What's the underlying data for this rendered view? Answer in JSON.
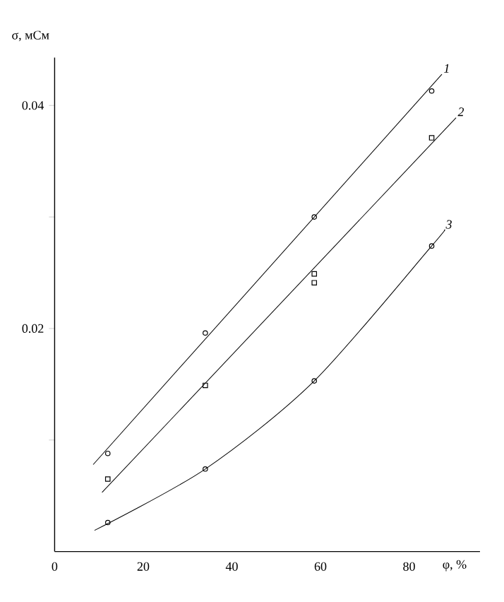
{
  "chart_data": {
    "type": "scatter",
    "xlabel": "φ, %",
    "ylabel": "σ, мСм",
    "xlim": [
      0,
      96
    ],
    "ylim": [
      0,
      0.0443
    ],
    "xticks": [
      0,
      20,
      40,
      60,
      80
    ],
    "yticks": [
      {
        "value": 0.01,
        "label": null
      },
      0.02,
      {
        "value": 0.03,
        "label": null
      },
      0.04
    ],
    "series": [
      {
        "marker": "circle",
        "color": "#000000",
        "x": [
          12.0,
          34.0,
          58.6,
          85.1
        ],
        "values": [
          0.0088,
          0.0196,
          0.03,
          0.0413
        ]
      },
      {
        "marker": "square",
        "color": "#000000",
        "x": [
          12.0,
          34.0,
          58.6,
          58.6,
          85.1
        ],
        "values": [
          0.0065,
          0.0149,
          0.0249,
          0.0241,
          0.0371
        ]
      },
      {
        "marker": "circle",
        "color": "#000000",
        "x": [
          12.0,
          34.0,
          58.6,
          85.1
        ],
        "values": [
          0.0026,
          0.0074,
          0.0153,
          0.0274
        ]
      },
      {
        "type": "line",
        "name": "1",
        "color": "#000000",
        "line_style": "solid",
        "x": [
          8.7,
          87.4
        ],
        "values": [
          0.0078,
          0.0428
        ]
      },
      {
        "type": "line",
        "name": "2",
        "color": "#000000",
        "line_style": "solid",
        "x": [
          10.7,
          90.6
        ],
        "values": [
          0.0053,
          0.0389
        ]
      },
      {
        "type": "line",
        "name": "3",
        "color": "#000000",
        "line_style": "solid",
        "x": [
          9.0,
          34.0,
          58.6,
          85.1,
          87.9
        ],
        "values": [
          0.0019,
          0.0074,
          0.0153,
          0.0274,
          0.0288
        ]
      }
    ]
  }
}
